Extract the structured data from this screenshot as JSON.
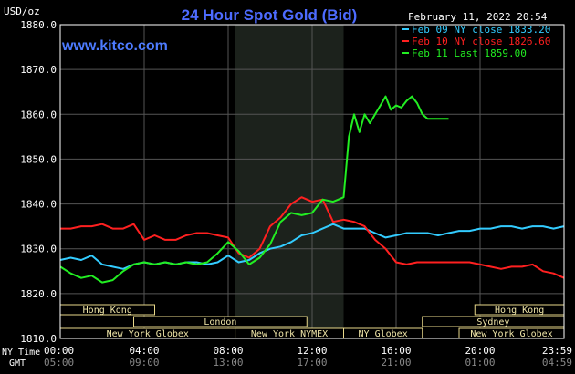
{
  "chart_data": {
    "type": "line",
    "title": "24 Hour Spot Gold (Bid)",
    "watermark": "www.kitco.com",
    "date_label": "February 11, 2022 20:54",
    "ylabel": "USD/oz",
    "ylim": [
      1810,
      1880
    ],
    "yticks": [
      "1810.0",
      "1820.0",
      "1830.0",
      "1840.0",
      "1850.0",
      "1860.0",
      "1870.0",
      "1880.0"
    ],
    "xlim_hours": [
      0,
      24
    ],
    "x_axis_names": [
      "NY Time",
      "GMT"
    ],
    "xticks_ny": [
      "00:00",
      "04:00",
      "08:00",
      "12:00",
      "16:00",
      "20:00",
      "23:59"
    ],
    "xticks_gmt": [
      "05:00",
      "09:00",
      "13:00",
      "17:00",
      "21:00",
      "01:00",
      "04:59"
    ],
    "shaded_region_hours": [
      8.33,
      13.5
    ],
    "sessions": [
      {
        "name": "Hong Kong",
        "row": 0,
        "segments": [
          [
            0,
            4.5
          ],
          [
            19.75,
            24
          ]
        ]
      },
      {
        "name": "London",
        "row": 1,
        "segments": [
          [
            3.5,
            11.75
          ]
        ]
      },
      {
        "name": "Sydney",
        "row": 1,
        "segments": [
          [
            17.25,
            24
          ]
        ]
      },
      {
        "name": "New York Globex",
        "row": 2,
        "segments": [
          [
            0,
            8.33
          ],
          [
            19,
            24
          ]
        ]
      },
      {
        "name": "New York NYMEX",
        "row": 2,
        "segments": [
          [
            8.33,
            13.5
          ]
        ]
      },
      {
        "name": "NY Globex",
        "row": 2,
        "segments": [
          [
            13.5,
            17.25
          ]
        ]
      }
    ],
    "series": [
      {
        "name": "Feb 09 NY close 1833.20",
        "color": "#33ccff",
        "x": [
          0,
          0.5,
          1,
          1.5,
          2,
          2.5,
          3,
          3.5,
          4,
          4.5,
          5,
          5.5,
          6,
          6.5,
          7,
          7.5,
          8,
          8.5,
          9,
          9.5,
          10,
          10.5,
          11,
          11.5,
          12,
          12.5,
          13,
          13.5,
          14,
          14.5,
          15,
          15.5,
          16,
          16.5,
          17,
          17.5,
          18,
          18.5,
          19,
          19.5,
          20,
          20.5,
          21,
          21.5,
          22,
          22.5,
          23,
          23.5,
          24
        ],
        "y": [
          1827.5,
          1828,
          1827.5,
          1828.5,
          1826.5,
          1826,
          1825.5,
          1826.5,
          1827,
          1826.5,
          1827,
          1826.5,
          1827,
          1827,
          1826.5,
          1827,
          1828.5,
          1827,
          1827.5,
          1829,
          1830,
          1830.5,
          1831.5,
          1833,
          1833.5,
          1834.5,
          1835.5,
          1834.5,
          1834.5,
          1834.5,
          1833.5,
          1832.5,
          1833,
          1833.5,
          1833.5,
          1833.5,
          1833,
          1833.5,
          1834,
          1834,
          1834.5,
          1834.5,
          1835,
          1835,
          1834.5,
          1835,
          1835,
          1834.5,
          1835
        ]
      },
      {
        "name": "Feb 10 NY close 1826.60",
        "color": "#ff2020",
        "x": [
          0,
          0.5,
          1,
          1.5,
          2,
          2.5,
          3,
          3.5,
          4,
          4.5,
          5,
          5.5,
          6,
          6.5,
          7,
          7.5,
          8,
          8.5,
          9,
          9.5,
          10,
          10.5,
          11,
          11.5,
          12,
          12.5,
          13,
          13.5,
          14,
          14.5,
          15,
          15.5,
          16,
          16.5,
          17,
          17.5,
          18,
          18.5,
          19,
          19.5,
          20,
          20.5,
          21,
          21.5,
          22,
          22.5,
          23,
          23.5,
          24
        ],
        "y": [
          1834.5,
          1834.5,
          1835,
          1835,
          1835.5,
          1834.5,
          1834.5,
          1835.5,
          1832,
          1833,
          1832,
          1832,
          1833,
          1833.5,
          1833.5,
          1833,
          1832.5,
          1829,
          1828,
          1830,
          1835,
          1837,
          1840,
          1841.5,
          1840.5,
          1841,
          1836,
          1836.5,
          1836,
          1835,
          1832,
          1830,
          1827,
          1826.5,
          1827,
          1827,
          1827,
          1827,
          1827,
          1827,
          1826.5,
          1826,
          1825.5,
          1826,
          1826,
          1826.5,
          1825,
          1824.5,
          1823.5
        ]
      },
      {
        "name": "Feb 11 Last 1859.00",
        "color": "#22ee22",
        "x": [
          0,
          0.5,
          1,
          1.5,
          2,
          2.5,
          3,
          3.5,
          4,
          4.5,
          5,
          5.5,
          6,
          6.5,
          7,
          7.5,
          8,
          8.5,
          9,
          9.5,
          10,
          10.5,
          11,
          11.5,
          12,
          12.5,
          13,
          13.25,
          13.5,
          13.75,
          14,
          14.25,
          14.5,
          14.75,
          15,
          15.25,
          15.5,
          15.75,
          16,
          16.25,
          16.5,
          16.75,
          17,
          17.25,
          17.5,
          18,
          18.5
        ],
        "y": [
          1826,
          1824.5,
          1823.5,
          1824,
          1822.5,
          1823,
          1825,
          1826.5,
          1827,
          1826.5,
          1827,
          1826.5,
          1827,
          1826.5,
          1827,
          1829,
          1831.5,
          1829.5,
          1826.5,
          1828,
          1831,
          1836,
          1838,
          1837.5,
          1838,
          1841,
          1840.5,
          1841,
          1841.5,
          1855,
          1860,
          1856,
          1860,
          1858,
          1860,
          1862,
          1864,
          1861,
          1862,
          1861.5,
          1863,
          1864,
          1862.5,
          1860,
          1859,
          1859,
          1859
        ]
      }
    ]
  }
}
